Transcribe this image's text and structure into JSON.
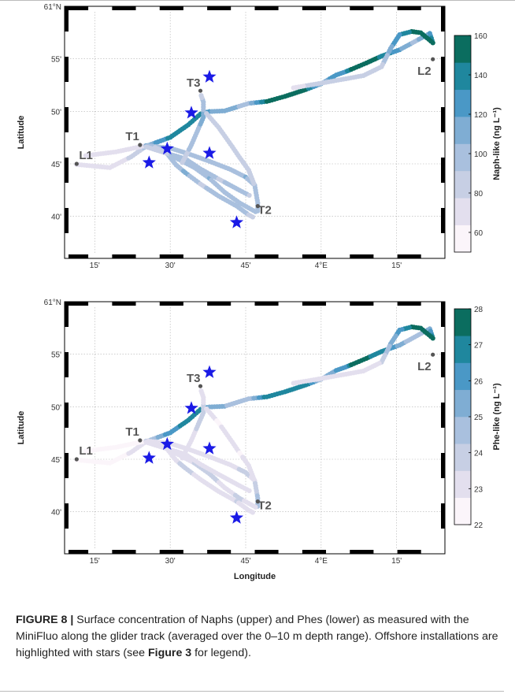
{
  "chart_data": [
    {
      "type": "scatter",
      "panel": "upper",
      "xlabel": "",
      "ylabel": "Latitude",
      "colorbar_label": "Naph-like (ng L⁻¹)",
      "colorbar_ticks": [
        "60",
        "80",
        "100",
        "120",
        "140",
        "160"
      ],
      "colorbar_range": [
        50,
        160
      ],
      "x_tick_labels": [
        "15'",
        "30'",
        "45'",
        "4°E",
        "15'"
      ],
      "y_tick_labels": [
        "61°N",
        "55'",
        "50'",
        "45'",
        "40'"
      ],
      "xlim_deg_E": [
        3.15,
        4.41
      ],
      "ylim_deg_N": [
        60.6,
        61.0
      ],
      "colors": [
        "#fbf5fa",
        "#e3dfee",
        "#c7cfe4",
        "#a9c0de",
        "#7fadd3",
        "#4a98c6",
        "#1f879e",
        "#0b6d5f"
      ],
      "sites": [
        {
          "label": "L1",
          "lon": 3.19,
          "lat": 60.75
        },
        {
          "label": "T1",
          "lon": 3.4,
          "lat": 60.78
        },
        {
          "label": "T3",
          "lon": 3.6,
          "lat": 60.866
        },
        {
          "label": "T2",
          "lon": 3.79,
          "lat": 60.683
        },
        {
          "label": "L2",
          "lon": 4.37,
          "lat": 60.916
        }
      ],
      "installations": [
        {
          "lon": 3.63,
          "lat": 60.888
        },
        {
          "lon": 3.57,
          "lat": 60.831
        },
        {
          "lon": 3.49,
          "lat": 60.774
        },
        {
          "lon": 3.63,
          "lat": 60.767
        },
        {
          "lon": 3.43,
          "lat": 60.752
        },
        {
          "lon": 3.72,
          "lat": 60.657
        }
      ],
      "track_segments": [
        {
          "points": [
            [
              3.19,
              60.749
            ],
            [
              3.3,
              60.744
            ],
            [
              3.37,
              60.761
            ],
            [
              3.42,
              60.778
            ]
          ],
          "values": [
            70,
            68,
            80,
            95
          ]
        },
        {
          "points": [
            [
              3.22,
              60.763
            ],
            [
              3.32,
              60.769
            ],
            [
              3.42,
              60.779
            ]
          ],
          "values": [
            72,
            70,
            74
          ]
        },
        {
          "points": [
            [
              3.42,
              60.778
            ],
            [
              3.5,
              60.792
            ],
            [
              3.56,
              60.812
            ],
            [
              3.6,
              60.829
            ],
            [
              3.63,
              60.833
            ],
            [
              3.68,
              60.834
            ],
            [
              3.76,
              60.846
            ],
            [
              3.82,
              60.849
            ],
            [
              3.88,
              60.857
            ],
            [
              3.95,
              60.868
            ],
            [
              4.0,
              60.877
            ],
            [
              4.05,
              60.891
            ],
            [
              4.08,
              60.896
            ],
            [
              4.1,
              60.9
            ],
            [
              4.15,
              60.91
            ],
            [
              4.2,
              60.921
            ],
            [
              4.26,
              60.931
            ],
            [
              4.31,
              60.944
            ],
            [
              4.36,
              60.957
            ],
            [
              4.37,
              60.942
            ],
            [
              4.33,
              60.958
            ],
            [
              4.3,
              60.96
            ],
            [
              4.26,
              60.955
            ],
            [
              4.23,
              60.933
            ],
            [
              4.2,
              60.904
            ],
            [
              4.14,
              60.89
            ],
            [
              4.0,
              60.878
            ],
            [
              3.9,
              60.87
            ]
          ],
          "values": [
            110,
            135,
            140,
            145,
            120,
            110,
            100,
            150,
            150,
            150,
            110,
            130,
            130,
            150,
            150,
            145,
            120,
            100,
            120,
            150,
            160,
            150,
            130,
            115,
            85,
            80,
            80,
            75
          ]
        },
        {
          "points": [
            [
              3.42,
              60.779
            ],
            [
              3.5,
              60.775
            ],
            [
              3.56,
              60.766
            ],
            [
              3.63,
              60.754
            ],
            [
              3.7,
              60.741
            ],
            [
              3.75,
              60.729
            ],
            [
              3.78,
              60.716
            ],
            [
              3.79,
              60.688
            ],
            [
              3.79,
              60.671
            ]
          ],
          "values": [
            105,
            100,
            95,
            95,
            100,
            105,
            100,
            100,
            105
          ]
        },
        {
          "points": [
            [
              3.45,
              60.776
            ],
            [
              3.52,
              60.759
            ],
            [
              3.58,
              60.744
            ],
            [
              3.63,
              60.727
            ],
            [
              3.68,
              60.705
            ],
            [
              3.73,
              60.688
            ],
            [
              3.76,
              60.68
            ],
            [
              3.79,
              60.672
            ]
          ],
          "values": [
            90,
            95,
            100,
            105,
            95,
            100,
            95,
            90
          ]
        },
        {
          "points": [
            [
              3.48,
              60.772
            ],
            [
              3.52,
              60.748
            ],
            [
              3.55,
              60.736
            ],
            [
              3.6,
              60.718
            ],
            [
              3.66,
              60.699
            ],
            [
              3.72,
              60.683
            ],
            [
              3.76,
              60.669
            ],
            [
              3.78,
              60.664
            ]
          ],
          "values": [
            90,
            95,
            110,
            90,
            95,
            100,
            90,
            88
          ]
        },
        {
          "points": [
            [
              3.42,
              60.777
            ],
            [
              3.48,
              60.768
            ],
            [
              3.55,
              60.758
            ],
            [
              3.6,
              60.742
            ],
            [
              3.66,
              60.726
            ],
            [
              3.73,
              60.708
            ],
            [
              3.77,
              60.698
            ]
          ],
          "values": [
            85,
            90,
            95,
            100,
            90,
            95,
            90
          ]
        },
        {
          "points": [
            [
              3.54,
              60.752
            ],
            [
              3.57,
              60.78
            ],
            [
              3.59,
              60.802
            ],
            [
              3.61,
              60.824
            ],
            [
              3.61,
              60.848
            ],
            [
              3.6,
              60.862
            ]
          ],
          "values": [
            80,
            95,
            100,
            110,
            95,
            80
          ]
        },
        {
          "points": [
            [
              3.62,
              60.83
            ],
            [
              3.66,
              60.808
            ],
            [
              3.7,
              60.781
            ],
            [
              3.73,
              60.76
            ],
            [
              3.76,
              60.74
            ],
            [
              3.78,
              60.715
            ]
          ],
          "values": [
            85,
            80,
            90,
            80,
            85,
            90
          ]
        }
      ]
    },
    {
      "type": "scatter",
      "panel": "lower",
      "xlabel": "Longitude",
      "ylabel": "Latitude",
      "colorbar_label": "Phe-like (ng L⁻¹)",
      "colorbar_ticks": [
        "22",
        "23",
        "24",
        "25",
        "26",
        "27",
        "28"
      ],
      "colorbar_range": [
        22,
        28
      ],
      "x_tick_labels": [
        "15'",
        "30'",
        "45'",
        "4°E",
        "15'"
      ],
      "y_tick_labels": [
        "61°N",
        "55'",
        "50'",
        "45'",
        "40'"
      ],
      "xlim_deg_E": [
        3.15,
        4.41
      ],
      "ylim_deg_N": [
        60.6,
        61.0
      ],
      "colors": [
        "#fbf5fa",
        "#e3dfee",
        "#c7cfe4",
        "#a9c0de",
        "#7fadd3",
        "#4a98c6",
        "#1f879e",
        "#0b6d5f"
      ],
      "sites": [
        {
          "label": "L1",
          "lon": 3.19,
          "lat": 60.75
        },
        {
          "label": "T1",
          "lon": 3.4,
          "lat": 60.78
        },
        {
          "label": "T3",
          "lon": 3.6,
          "lat": 60.866
        },
        {
          "label": "T2",
          "lon": 3.79,
          "lat": 60.683
        },
        {
          "label": "L2",
          "lon": 4.37,
          "lat": 60.916
        }
      ],
      "installations": [
        {
          "lon": 3.63,
          "lat": 60.888
        },
        {
          "lon": 3.57,
          "lat": 60.831
        },
        {
          "lon": 3.49,
          "lat": 60.774
        },
        {
          "lon": 3.63,
          "lat": 60.767
        },
        {
          "lon": 3.43,
          "lat": 60.752
        },
        {
          "lon": 3.72,
          "lat": 60.657
        }
      ],
      "track_segments": [
        {
          "points": [
            [
              3.19,
              60.749
            ],
            [
              3.3,
              60.744
            ],
            [
              3.37,
              60.761
            ],
            [
              3.42,
              60.778
            ]
          ],
          "values": [
            22.5,
            22.4,
            22.8,
            23.0
          ]
        },
        {
          "points": [
            [
              3.22,
              60.763
            ],
            [
              3.32,
              60.769
            ],
            [
              3.42,
              60.779
            ]
          ],
          "values": [
            22.6,
            22.5,
            22.7
          ]
        },
        {
          "points": [
            [
              3.42,
              60.778
            ],
            [
              3.5,
              60.792
            ],
            [
              3.56,
              60.812
            ],
            [
              3.6,
              60.829
            ],
            [
              3.63,
              60.833
            ],
            [
              3.68,
              60.834
            ],
            [
              3.76,
              60.846
            ],
            [
              3.82,
              60.849
            ],
            [
              3.88,
              60.857
            ],
            [
              3.95,
              60.868
            ],
            [
              4.0,
              60.877
            ],
            [
              4.05,
              60.891
            ],
            [
              4.08,
              60.896
            ],
            [
              4.1,
              60.9
            ],
            [
              4.15,
              60.91
            ],
            [
              4.2,
              60.921
            ],
            [
              4.26,
              60.931
            ],
            [
              4.31,
              60.944
            ],
            [
              4.36,
              60.957
            ],
            [
              4.37,
              60.942
            ],
            [
              4.33,
              60.958
            ],
            [
              4.3,
              60.96
            ],
            [
              4.26,
              60.955
            ],
            [
              4.23,
              60.933
            ],
            [
              4.2,
              60.904
            ],
            [
              4.14,
              60.89
            ],
            [
              4.0,
              60.878
            ],
            [
              3.9,
              60.87
            ]
          ],
          "values": [
            24.0,
            26.2,
            26.8,
            27.0,
            25.5,
            25.0,
            24.5,
            27.2,
            27.2,
            27.0,
            24.5,
            25.8,
            26.0,
            27.3,
            27.3,
            27.0,
            25.5,
            24.3,
            25.5,
            27.3,
            27.8,
            27.4,
            26.0,
            25.2,
            23.5,
            23.3,
            23.2,
            23.0
          ]
        },
        {
          "points": [
            [
              3.42,
              60.779
            ],
            [
              3.5,
              60.775
            ],
            [
              3.56,
              60.766
            ],
            [
              3.63,
              60.754
            ],
            [
              3.7,
              60.741
            ],
            [
              3.75,
              60.729
            ],
            [
              3.78,
              60.716
            ],
            [
              3.79,
              60.688
            ],
            [
              3.79,
              60.671
            ]
          ],
          "values": [
            23.5,
            23.3,
            23.2,
            23.0,
            23.4,
            23.6,
            23.4,
            24.5,
            25.0
          ]
        },
        {
          "points": [
            [
              3.45,
              60.776
            ],
            [
              3.52,
              60.759
            ],
            [
              3.58,
              60.744
            ],
            [
              3.63,
              60.727
            ],
            [
              3.68,
              60.705
            ],
            [
              3.73,
              60.688
            ],
            [
              3.76,
              60.68
            ],
            [
              3.79,
              60.672
            ]
          ],
          "values": [
            23.0,
            23.2,
            23.5,
            23.8,
            23.3,
            23.6,
            23.3,
            23.0
          ]
        },
        {
          "points": [
            [
              3.48,
              60.772
            ],
            [
              3.52,
              60.748
            ],
            [
              3.55,
              60.736
            ],
            [
              3.6,
              60.718
            ],
            [
              3.66,
              60.699
            ],
            [
              3.72,
              60.683
            ],
            [
              3.76,
              60.669
            ],
            [
              3.78,
              60.664
            ]
          ],
          "values": [
            23.0,
            23.2,
            24.0,
            23.1,
            23.3,
            23.5,
            23.1,
            23.0
          ]
        },
        {
          "points": [
            [
              3.42,
              60.777
            ],
            [
              3.48,
              60.768
            ],
            [
              3.55,
              60.758
            ],
            [
              3.6,
              60.742
            ],
            [
              3.66,
              60.726
            ],
            [
              3.73,
              60.708
            ],
            [
              3.77,
              60.698
            ]
          ],
          "values": [
            22.8,
            23.0,
            23.2,
            23.4,
            23.0,
            23.2,
            23.0
          ]
        },
        {
          "points": [
            [
              3.54,
              60.752
            ],
            [
              3.57,
              60.78
            ],
            [
              3.59,
              60.802
            ],
            [
              3.61,
              60.824
            ],
            [
              3.61,
              60.848
            ],
            [
              3.6,
              60.862
            ]
          ],
          "values": [
            22.8,
            23.2,
            23.6,
            24.0,
            23.2,
            22.8
          ]
        },
        {
          "points": [
            [
              3.62,
              60.83
            ],
            [
              3.66,
              60.808
            ],
            [
              3.7,
              60.781
            ],
            [
              3.73,
              60.76
            ],
            [
              3.76,
              60.74
            ],
            [
              3.78,
              60.715
            ]
          ],
          "values": [
            22.9,
            22.7,
            23.0,
            22.7,
            22.9,
            23.0
          ]
        }
      ]
    }
  ],
  "caption": {
    "label": "FIGURE 8 |",
    "text_part1": " Surface concentration of Naphs (upper) and Phes (lower) as measured with the MiniFluo along the glider track (averaged over the 0–10 m depth range). Offshore installations are highlighted with stars (see ",
    "ref": "Figure 3",
    "text_part2": " for legend)."
  },
  "colors": {
    "star": "#1a1ae6",
    "site_marker": "#555555",
    "grid": "#b0b0b0"
  }
}
